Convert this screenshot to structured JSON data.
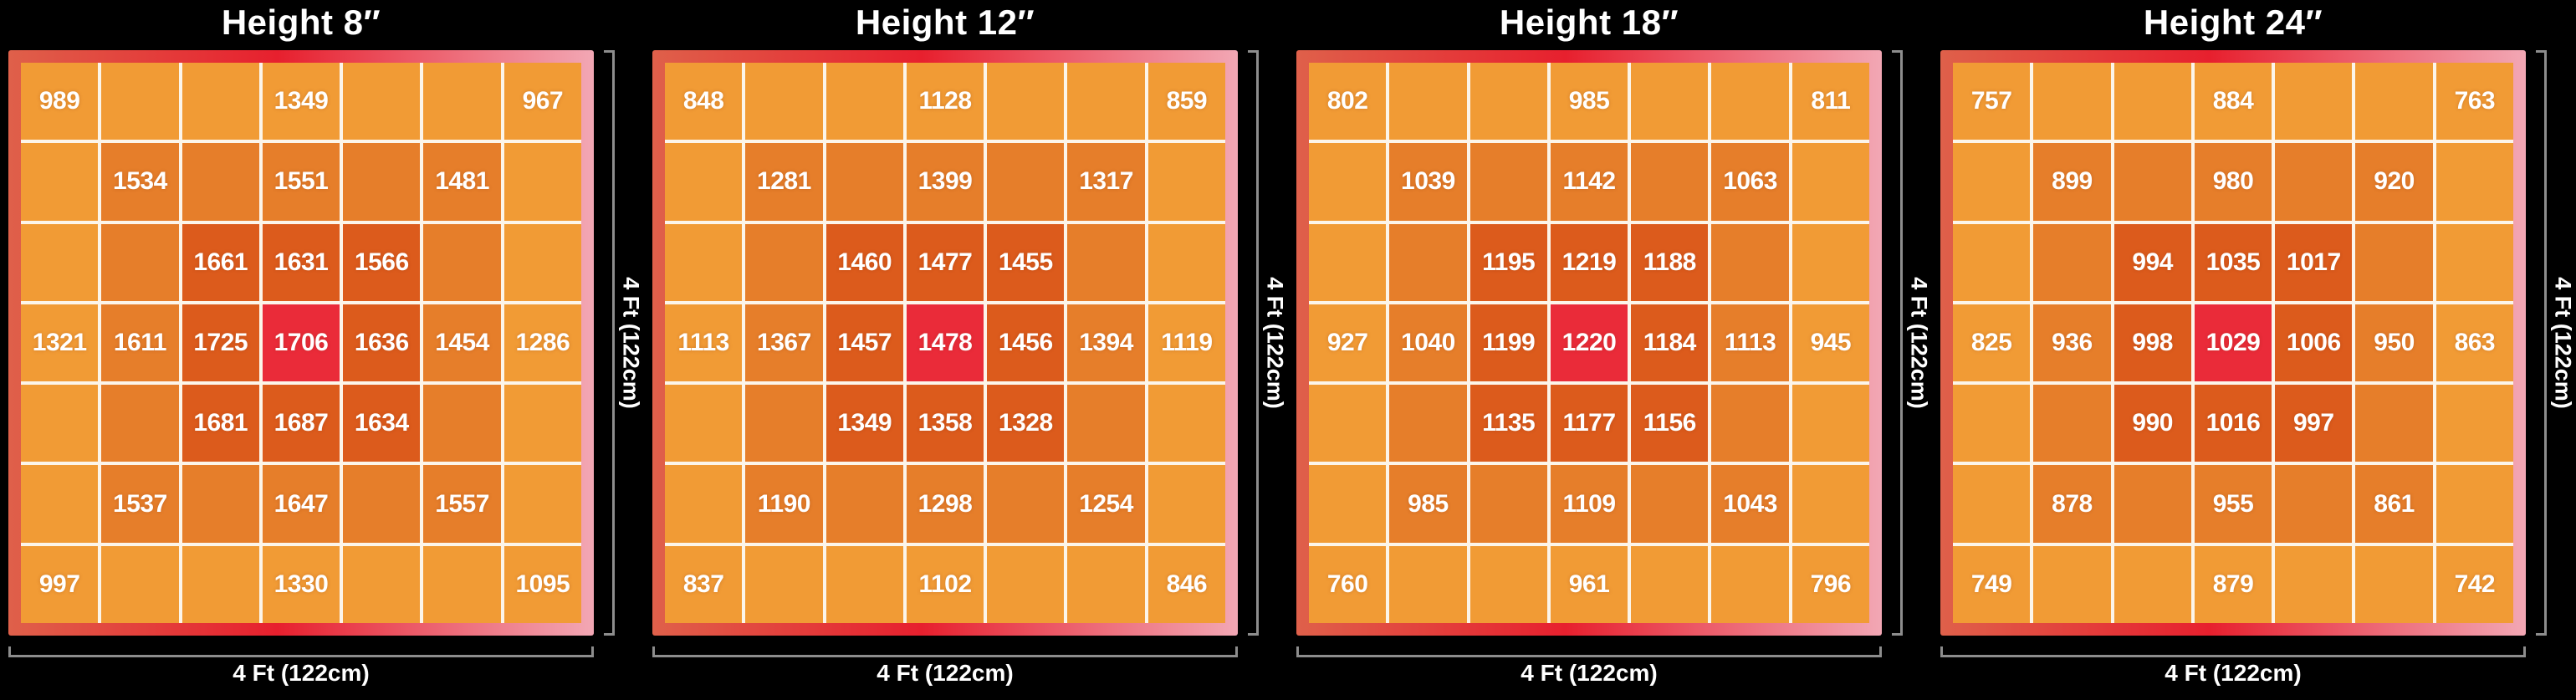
{
  "colors": {
    "background": "#000000",
    "text": "#ffffff",
    "bracket": "#8d8d8d",
    "grid_line": "#fcf5ea",
    "center": "#ea2b39",
    "ring1": "#dc5b1c",
    "ring2": "#e67e2a",
    "outer": "#f19b35",
    "frame_left": "#df604a",
    "frame_center": "#e7202e",
    "frame_right": "#f2a7b4"
  },
  "chart_data": [
    {
      "type": "heatmap",
      "title": "Height 8″",
      "xlabel": "4 Ft (122cm)",
      "ylabel": "4 Ft (122cm)",
      "rows": 7,
      "cols": 7,
      "legend": "color rings by intensity: outer lowest, red center highest",
      "values": [
        [
          989,
          null,
          null,
          1349,
          null,
          null,
          967
        ],
        [
          null,
          1534,
          null,
          1551,
          null,
          1481,
          null
        ],
        [
          null,
          null,
          1661,
          1631,
          1566,
          null,
          null
        ],
        [
          1321,
          1611,
          1725,
          1706,
          1636,
          1454,
          1286
        ],
        [
          null,
          null,
          1681,
          1687,
          1634,
          null,
          null
        ],
        [
          null,
          1537,
          null,
          1647,
          null,
          1557,
          null
        ],
        [
          997,
          null,
          null,
          1330,
          null,
          null,
          1095
        ]
      ]
    },
    {
      "type": "heatmap",
      "title": "Height 12″",
      "xlabel": "4 Ft (122cm)",
      "ylabel": "4 Ft (122cm)",
      "rows": 7,
      "cols": 7,
      "legend": "color rings by intensity: outer lowest, red center highest",
      "values": [
        [
          848,
          null,
          null,
          1128,
          null,
          null,
          859
        ],
        [
          null,
          1281,
          null,
          1399,
          null,
          1317,
          null
        ],
        [
          null,
          null,
          1460,
          1477,
          1455,
          null,
          null
        ],
        [
          1113,
          1367,
          1457,
          1478,
          1456,
          1394,
          1119
        ],
        [
          null,
          null,
          1349,
          1358,
          1328,
          null,
          null
        ],
        [
          null,
          1190,
          null,
          1298,
          null,
          1254,
          null
        ],
        [
          837,
          null,
          null,
          1102,
          null,
          null,
          846
        ]
      ]
    },
    {
      "type": "heatmap",
      "title": "Height 18″",
      "xlabel": "4 Ft (122cm)",
      "ylabel": "4 Ft (122cm)",
      "rows": 7,
      "cols": 7,
      "legend": "color rings by intensity: outer lowest, red center highest",
      "values": [
        [
          802,
          null,
          null,
          985,
          null,
          null,
          811
        ],
        [
          null,
          1039,
          null,
          1142,
          null,
          1063,
          null
        ],
        [
          null,
          null,
          1195,
          1219,
          1188,
          null,
          null
        ],
        [
          927,
          1040,
          1199,
          1220,
          1184,
          1113,
          945
        ],
        [
          null,
          null,
          1135,
          1177,
          1156,
          null,
          null
        ],
        [
          null,
          985,
          null,
          1109,
          null,
          1043,
          null
        ],
        [
          760,
          null,
          null,
          961,
          null,
          null,
          796
        ]
      ]
    },
    {
      "type": "heatmap",
      "title": "Height 24″",
      "xlabel": "4 Ft (122cm)",
      "ylabel": "4 Ft (122cm)",
      "rows": 7,
      "cols": 7,
      "legend": "color rings by intensity: outer lowest, red center highest",
      "values": [
        [
          757,
          null,
          null,
          884,
          null,
          null,
          763
        ],
        [
          null,
          899,
          null,
          980,
          null,
          920,
          null
        ],
        [
          null,
          null,
          994,
          1035,
          1017,
          null,
          null
        ],
        [
          825,
          936,
          998,
          1029,
          1006,
          950,
          863
        ],
        [
          null,
          null,
          990,
          1016,
          997,
          null,
          null
        ],
        [
          null,
          878,
          null,
          955,
          null,
          861,
          null
        ],
        [
          749,
          null,
          null,
          879,
          null,
          null,
          742
        ]
      ]
    }
  ]
}
